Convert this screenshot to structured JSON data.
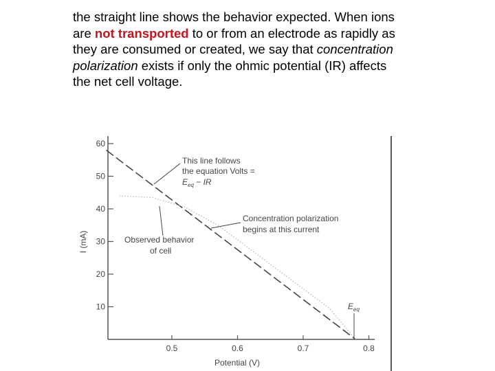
{
  "text": {
    "part1": "the straight line shows the behavior expected. When ions are ",
    "emphasis": "not transported",
    "part2": " to or from an electrode as rapidly as they are consumed or created, we say that ",
    "italic": "concentration polarization",
    "part3": " exists if only the ohmic potential (IR) affects the net cell voltage."
  },
  "colors": {
    "emphasis": "#c0161d",
    "ink": "#444444",
    "faint": "#b5b5b5"
  },
  "chart_data": {
    "type": "line",
    "xlabel": "Potential (V)",
    "ylabel": "I (mA)",
    "xlim": [
      0.4,
      0.8
    ],
    "ylim": [
      0,
      62
    ],
    "xticks": [
      "0.5",
      "0.6",
      "0.7",
      "0.8"
    ],
    "yticks": [
      "10",
      "20",
      "30",
      "40",
      "50",
      "60"
    ],
    "series": [
      {
        "name": "This line follows the equation Volts = Eeq − IR",
        "style": "dashed",
        "x": [
          0.4,
          0.78
        ],
        "y": [
          58,
          0
        ]
      },
      {
        "name": "Observed behavior of cell",
        "style": "dotted",
        "x": [
          0.42,
          0.47,
          0.52,
          0.57,
          0.6,
          0.65,
          0.7,
          0.74,
          0.78
        ],
        "y": [
          44,
          43.5,
          40.5,
          35,
          30.5,
          23,
          15.5,
          9.5,
          0
        ]
      }
    ],
    "annotations": {
      "ideal_line": {
        "line1": "This line follows",
        "line2": "the equation Volts =",
        "eq_sym": "E",
        "eq_sub": "eq",
        "eq_rest": " − IR"
      },
      "observed": {
        "line1": "Observed behavior",
        "line2": "of cell"
      },
      "polarization": {
        "line1": "Concentration polarization",
        "line2": "begins at this current"
      },
      "eeq": {
        "sym": "E",
        "sub": "eq"
      }
    }
  }
}
